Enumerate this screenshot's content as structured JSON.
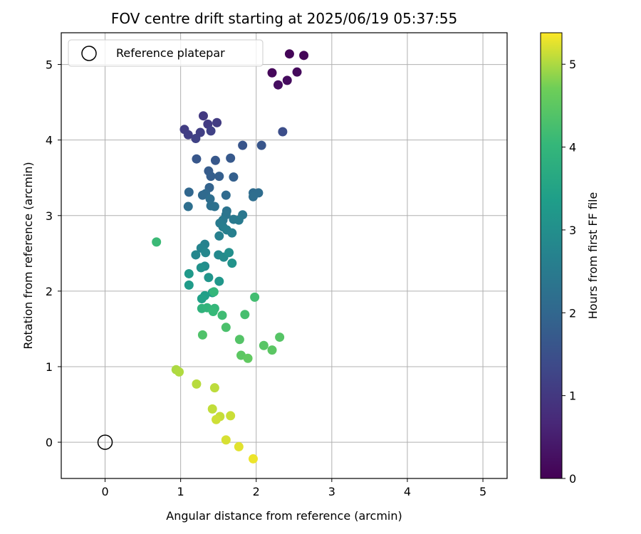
{
  "chart_data": {
    "type": "scatter",
    "title": "FOV centre drift starting at 2025/06/19 05:37:55",
    "xlabel": "Angular distance from reference (arcmin)",
    "ylabel": "Rotation from reference (arcmin)",
    "xlim": [
      -0.58,
      5.32
    ],
    "ylim": [
      -0.48,
      5.42
    ],
    "xticks": [
      0,
      1,
      2,
      3,
      4,
      5
    ],
    "yticks": [
      0,
      1,
      2,
      3,
      4,
      5
    ],
    "grid": true,
    "legend": {
      "position": "top-left",
      "entries": [
        "Reference platepar"
      ]
    },
    "reference_point": {
      "x": 0,
      "y": 0
    },
    "colorbar": {
      "label": "Hours from first FF file",
      "colormap": "viridis",
      "range": [
        0,
        5.38
      ],
      "ticks": [
        0,
        1,
        2,
        3,
        4,
        5
      ]
    },
    "points": [
      {
        "x": 2.44,
        "y": 5.14,
        "c": 0.05
      },
      {
        "x": 2.63,
        "y": 5.12,
        "c": 0.08
      },
      {
        "x": 2.21,
        "y": 4.89,
        "c": 0.12
      },
      {
        "x": 2.54,
        "y": 4.9,
        "c": 0.15
      },
      {
        "x": 2.41,
        "y": 4.79,
        "c": 0.18
      },
      {
        "x": 2.29,
        "y": 4.73,
        "c": 0.22
      },
      {
        "x": 1.3,
        "y": 4.32,
        "c": 1.02
      },
      {
        "x": 1.36,
        "y": 4.21,
        "c": 1.05
      },
      {
        "x": 1.48,
        "y": 4.23,
        "c": 1.08
      },
      {
        "x": 1.05,
        "y": 4.14,
        "c": 1.1
      },
      {
        "x": 1.1,
        "y": 4.07,
        "c": 1.13
      },
      {
        "x": 1.26,
        "y": 4.1,
        "c": 1.15
      },
      {
        "x": 1.4,
        "y": 4.12,
        "c": 1.18
      },
      {
        "x": 1.2,
        "y": 4.02,
        "c": 1.2
      },
      {
        "x": 2.35,
        "y": 4.11,
        "c": 1.45
      },
      {
        "x": 1.82,
        "y": 3.93,
        "c": 1.6
      },
      {
        "x": 2.07,
        "y": 3.93,
        "c": 1.62
      },
      {
        "x": 1.21,
        "y": 3.75,
        "c": 1.65
      },
      {
        "x": 1.46,
        "y": 3.73,
        "c": 1.68
      },
      {
        "x": 1.66,
        "y": 3.76,
        "c": 1.7
      },
      {
        "x": 1.37,
        "y": 3.59,
        "c": 1.75
      },
      {
        "x": 1.4,
        "y": 3.52,
        "c": 1.8
      },
      {
        "x": 1.51,
        "y": 3.52,
        "c": 1.82
      },
      {
        "x": 1.7,
        "y": 3.51,
        "c": 1.85
      },
      {
        "x": 1.38,
        "y": 3.37,
        "c": 1.9
      },
      {
        "x": 1.11,
        "y": 3.31,
        "c": 2.0
      },
      {
        "x": 1.29,
        "y": 3.27,
        "c": 2.05
      },
      {
        "x": 1.33,
        "y": 3.29,
        "c": 2.08
      },
      {
        "x": 1.6,
        "y": 3.27,
        "c": 2.1
      },
      {
        "x": 1.96,
        "y": 3.3,
        "c": 2.12
      },
      {
        "x": 2.03,
        "y": 3.3,
        "c": 2.14
      },
      {
        "x": 1.96,
        "y": 3.25,
        "c": 2.16
      },
      {
        "x": 1.39,
        "y": 3.22,
        "c": 2.18
      },
      {
        "x": 1.1,
        "y": 3.12,
        "c": 2.2
      },
      {
        "x": 1.4,
        "y": 3.13,
        "c": 2.22
      },
      {
        "x": 1.45,
        "y": 3.12,
        "c": 2.25
      },
      {
        "x": 1.61,
        "y": 3.06,
        "c": 2.3
      },
      {
        "x": 1.6,
        "y": 3.01,
        "c": 2.35
      },
      {
        "x": 1.82,
        "y": 3.01,
        "c": 2.4
      },
      {
        "x": 1.56,
        "y": 2.94,
        "c": 2.42
      },
      {
        "x": 1.7,
        "y": 2.95,
        "c": 2.45
      },
      {
        "x": 1.77,
        "y": 2.94,
        "c": 2.48
      },
      {
        "x": 1.52,
        "y": 2.9,
        "c": 2.5
      },
      {
        "x": 1.56,
        "y": 2.85,
        "c": 2.55
      },
      {
        "x": 1.61,
        "y": 2.81,
        "c": 2.6
      },
      {
        "x": 1.68,
        "y": 2.77,
        "c": 2.62
      },
      {
        "x": 1.51,
        "y": 2.73,
        "c": 2.65
      },
      {
        "x": 1.32,
        "y": 2.62,
        "c": 2.7
      },
      {
        "x": 1.27,
        "y": 2.57,
        "c": 2.75
      },
      {
        "x": 1.33,
        "y": 2.51,
        "c": 2.8
      },
      {
        "x": 1.2,
        "y": 2.48,
        "c": 2.82
      },
      {
        "x": 1.5,
        "y": 2.48,
        "c": 2.85
      },
      {
        "x": 1.57,
        "y": 2.45,
        "c": 2.9
      },
      {
        "x": 1.64,
        "y": 2.51,
        "c": 3.0
      },
      {
        "x": 1.68,
        "y": 2.37,
        "c": 3.1
      },
      {
        "x": 1.32,
        "y": 2.33,
        "c": 2.95
      },
      {
        "x": 1.27,
        "y": 2.31,
        "c": 3.05
      },
      {
        "x": 1.37,
        "y": 2.18,
        "c": 3.15
      },
      {
        "x": 1.51,
        "y": 2.13,
        "c": 3.2
      },
      {
        "x": 1.11,
        "y": 2.23,
        "c": 3.25
      },
      {
        "x": 1.11,
        "y": 2.08,
        "c": 3.3
      },
      {
        "x": 1.42,
        "y": 1.98,
        "c": 3.35
      },
      {
        "x": 1.32,
        "y": 1.94,
        "c": 3.4
      },
      {
        "x": 1.28,
        "y": 1.9,
        "c": 3.45
      },
      {
        "x": 0.68,
        "y": 2.65,
        "c": 4.1
      },
      {
        "x": 1.44,
        "y": 1.99,
        "c": 4.0
      },
      {
        "x": 1.98,
        "y": 1.92,
        "c": 4.2
      },
      {
        "x": 1.28,
        "y": 1.77,
        "c": 3.9
      },
      {
        "x": 1.35,
        "y": 1.78,
        "c": 3.95
      },
      {
        "x": 1.45,
        "y": 1.77,
        "c": 4.0
      },
      {
        "x": 1.43,
        "y": 1.73,
        "c": 4.05
      },
      {
        "x": 1.55,
        "y": 1.68,
        "c": 4.15
      },
      {
        "x": 1.85,
        "y": 1.69,
        "c": 4.25
      },
      {
        "x": 1.6,
        "y": 1.52,
        "c": 4.3
      },
      {
        "x": 1.29,
        "y": 1.42,
        "c": 4.35
      },
      {
        "x": 1.78,
        "y": 1.36,
        "c": 4.4
      },
      {
        "x": 2.31,
        "y": 1.39,
        "c": 4.42
      },
      {
        "x": 2.1,
        "y": 1.28,
        "c": 4.45
      },
      {
        "x": 2.21,
        "y": 1.22,
        "c": 4.48
      },
      {
        "x": 1.8,
        "y": 1.15,
        "c": 4.5
      },
      {
        "x": 1.89,
        "y": 1.11,
        "c": 4.55
      },
      {
        "x": 0.94,
        "y": 0.96,
        "c": 5.0
      },
      {
        "x": 0.98,
        "y": 0.93,
        "c": 5.02
      },
      {
        "x": 1.21,
        "y": 0.77,
        "c": 5.05
      },
      {
        "x": 1.45,
        "y": 0.72,
        "c": 5.08
      },
      {
        "x": 1.42,
        "y": 0.44,
        "c": 5.1
      },
      {
        "x": 1.52,
        "y": 0.34,
        "c": 5.12
      },
      {
        "x": 1.66,
        "y": 0.35,
        "c": 5.14
      },
      {
        "x": 1.47,
        "y": 0.3,
        "c": 5.16
      },
      {
        "x": 1.6,
        "y": 0.03,
        "c": 5.2
      },
      {
        "x": 1.77,
        "y": -0.06,
        "c": 5.25
      },
      {
        "x": 1.96,
        "y": -0.22,
        "c": 5.3
      }
    ]
  }
}
